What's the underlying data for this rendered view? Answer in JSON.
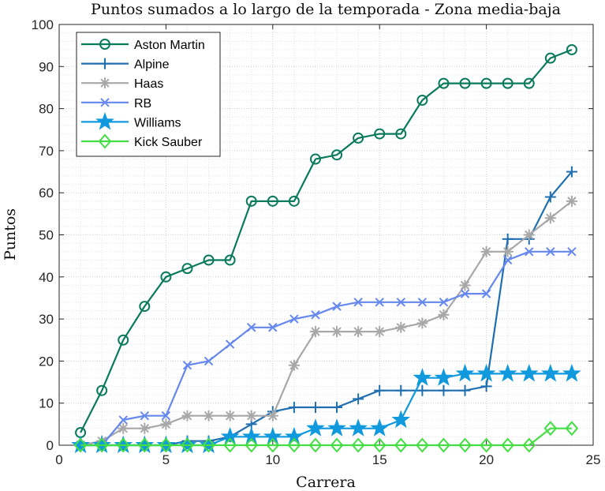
{
  "chart_data": {
    "type": "line",
    "title": "Puntos sumados a lo largo de la temporada - Zona media-baja",
    "xlabel": "Carrera",
    "ylabel": "Puntos",
    "xlim": [
      0,
      25
    ],
    "ylim": [
      0,
      100
    ],
    "xticks": [
      0,
      5,
      10,
      15,
      20,
      25
    ],
    "yticks": [
      0,
      10,
      20,
      30,
      40,
      50,
      60,
      70,
      80,
      90,
      100
    ],
    "grid": "major+minor dotted",
    "legend_position": "upper left",
    "x": [
      1,
      2,
      3,
      4,
      5,
      6,
      7,
      8,
      9,
      10,
      11,
      12,
      13,
      14,
      15,
      16,
      17,
      18,
      19,
      20,
      21,
      22,
      23,
      24
    ],
    "series": [
      {
        "name": "Aston Martin",
        "color": "#0a7a5c",
        "marker": "circle",
        "values": [
          3,
          13,
          25,
          33,
          40,
          42,
          44,
          44,
          58,
          58,
          58,
          68,
          69,
          73,
          74,
          74,
          82,
          86,
          86,
          86,
          86,
          86,
          92,
          94
        ]
      },
      {
        "name": "Alpine",
        "color": "#1f6fb0",
        "marker": "plus",
        "values": [
          0,
          0,
          0,
          0,
          0,
          1,
          1,
          2,
          5,
          8,
          9,
          9,
          9,
          11,
          13,
          13,
          13,
          13,
          13,
          14,
          49,
          49,
          59,
          65
        ]
      },
      {
        "name": "Haas",
        "color": "#a8a8a8",
        "marker": "asterisk",
        "values": [
          0,
          1,
          4,
          4,
          5,
          7,
          7,
          7,
          7,
          7,
          19,
          27,
          27,
          27,
          27,
          28,
          29,
          31,
          38,
          46,
          46,
          50,
          54,
          58
        ]
      },
      {
        "name": "RB",
        "color": "#6688ee",
        "marker": "x",
        "values": [
          0,
          0,
          6,
          7,
          7,
          19,
          20,
          24,
          28,
          28,
          30,
          31,
          33,
          34,
          34,
          34,
          34,
          34,
          36,
          36,
          44,
          46,
          46,
          46
        ]
      },
      {
        "name": "Williams",
        "color": "#1199dd",
        "marker": "star",
        "values": [
          0,
          0,
          0,
          0,
          0,
          0,
          0,
          2,
          2,
          2,
          2,
          4,
          4,
          4,
          4,
          6,
          16,
          16,
          17,
          17,
          17,
          17,
          17,
          17
        ]
      },
      {
        "name": "Kick Sauber",
        "color": "#44dd44",
        "marker": "diamond",
        "values": [
          0,
          0,
          0,
          0,
          0,
          0,
          0,
          0,
          0,
          0,
          0,
          0,
          0,
          0,
          0,
          0,
          0,
          0,
          0,
          0,
          0,
          0,
          4,
          4
        ]
      }
    ]
  }
}
